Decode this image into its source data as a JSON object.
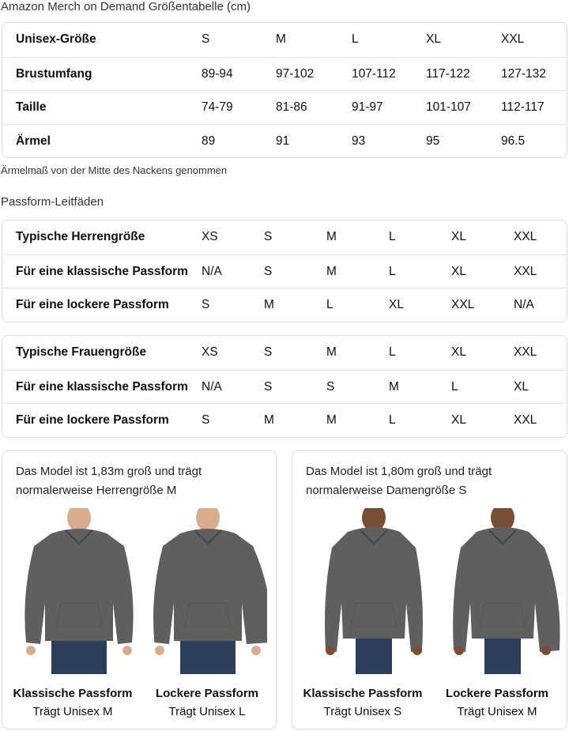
{
  "size_chart": {
    "title": "Amazon Merch on Demand Größentabelle (cm)",
    "rows": [
      [
        "Unisex-Größe",
        "S",
        "M",
        "L",
        "XL",
        "XXL"
      ],
      [
        "Brustumfang",
        "89-94",
        "97-102",
        "107-112",
        "117-122",
        "127-132"
      ],
      [
        "Taille",
        "74-79",
        "81-86",
        "91-97",
        "101-107",
        "112-117"
      ],
      [
        "Ärmel",
        "89",
        "91",
        "93",
        "95",
        "96.5"
      ]
    ],
    "note": "Ärmelmaß von der Mitte des Nackens genommen"
  },
  "fit_guide": {
    "title": "Passform-Leitfäden",
    "men": [
      [
        "Typische Herrengröße",
        "XS",
        "S",
        "M",
        "L",
        "XL",
        "XXL"
      ],
      [
        "Für eine klassische Passform",
        "N/A",
        "S",
        "M",
        "L",
        "XL",
        "XXL"
      ],
      [
        "Für eine lockere Passform",
        "S",
        "M",
        "L",
        "XL",
        "XXL",
        "N/A"
      ]
    ],
    "women": [
      [
        "Typische Frauengröße",
        "XS",
        "S",
        "M",
        "L",
        "XL",
        "XXL"
      ],
      [
        "Für eine klassische Passform",
        "N/A",
        "S",
        "S",
        "M",
        "L",
        "XL"
      ],
      [
        "Für eine lockere Passform",
        "S",
        "M",
        "M",
        "L",
        "XL",
        "XXL"
      ]
    ]
  },
  "models": [
    {
      "text": "Das Model ist 1,83m groß und trägt normalerweise Herrengröße M",
      "fits": [
        {
          "title": "Klassische Passform",
          "wears": "Trägt Unisex M"
        },
        {
          "title": "Lockere Passform",
          "wears": "Trägt Unisex L"
        }
      ]
    },
    {
      "text": "Das Model ist 1,80m groß und trägt normalerweise Damengröße S",
      "fits": [
        {
          "title": "Klassische Passform",
          "wears": "Trägt Unisex S"
        },
        {
          "title": "Lockere Passform",
          "wears": "Trägt Unisex M"
        }
      ]
    }
  ],
  "colors": {
    "hoodie": "#5f5f5f",
    "jeans": "#2d3e5c",
    "skin_light": "#d9ac90",
    "skin_dark": "#7a4e36"
  }
}
